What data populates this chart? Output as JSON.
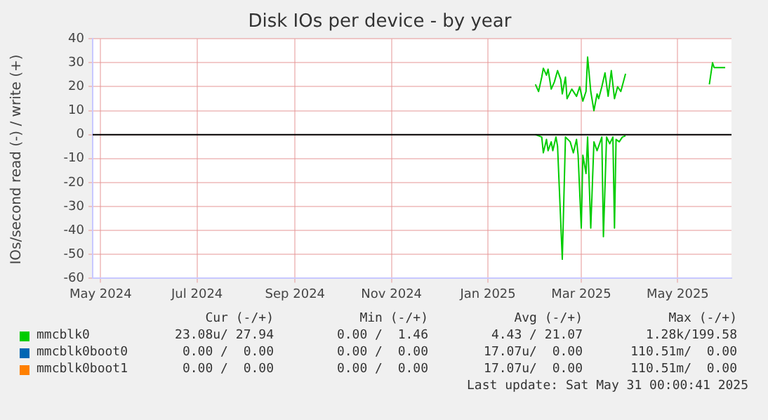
{
  "chart_data": {
    "type": "line",
    "title": "Disk IOs per device - by year",
    "ylabel": "IOs/second read (-) / write (+)",
    "xlim": [
      "2024-04-26",
      "2025-06-04"
    ],
    "xticks": [
      {
        "value": "2024-05-01",
        "label": "May 2024"
      },
      {
        "value": "2024-07-01",
        "label": "Jul 2024"
      },
      {
        "value": "2024-09-01",
        "label": "Sep 2024"
      },
      {
        "value": "2024-11-01",
        "label": "Nov 2024"
      },
      {
        "value": "2025-01-01",
        "label": "Jan 2025"
      },
      {
        "value": "2025-03-01",
        "label": "Mar 2025"
      },
      {
        "value": "2025-05-01",
        "label": "May 2025"
      }
    ],
    "ylim": [
      -60,
      40
    ],
    "yticks": [
      -60,
      -50,
      -40,
      -30,
      -20,
      -10,
      0,
      10,
      20,
      30,
      40
    ],
    "grid": true,
    "legend": "bottom",
    "marker": "none",
    "line_style": "solid",
    "ref_lines": [
      {
        "axis": "y",
        "value": 0,
        "color": "#000000"
      }
    ],
    "series": [
      {
        "name": "mmcblk0",
        "color": "#00cc00",
        "x": [
          "2025-01-31",
          "2025-02-02",
          "2025-02-04",
          "2025-02-05",
          "2025-02-07",
          "2025-02-08",
          "2025-02-10",
          "2025-02-12",
          "2025-02-14",
          "2025-02-16",
          "2025-02-17",
          "2025-02-19",
          "2025-02-20",
          "2025-02-23",
          "2025-02-26",
          "2025-02-28",
          "2025-03-02",
          "2025-03-04",
          "2025-03-05",
          "2025-03-07",
          "2025-03-09",
          "2025-03-11",
          "2025-03-12",
          "2025-03-14",
          "2025-03-16",
          "2025-03-18",
          "2025-03-20",
          "2025-03-22",
          "2025-03-24",
          "2025-03-26",
          "2025-03-29",
          "2025-04-15",
          "2025-05-21",
          "2025-05-23",
          "2025-05-24",
          "2025-05-31"
        ],
        "values": [
          21,
          18,
          24,
          27.7,
          24.8,
          27.3,
          19,
          22,
          26.7,
          23,
          17,
          24,
          15,
          19,
          16,
          20,
          14,
          18,
          32.4,
          18,
          10,
          17,
          15,
          20,
          25.8,
          16,
          26.7,
          15,
          20,
          18,
          25.4,
          null,
          21,
          30,
          28,
          28
        ]
      },
      {
        "color": "#00cc00",
        "x": [
          "2025-01-31",
          "2025-02-04",
          "2025-02-05",
          "2025-02-07",
          "2025-02-08",
          "2025-02-10",
          "2025-02-11",
          "2025-02-13",
          "2025-02-14",
          "2025-02-17",
          "2025-02-19",
          "2025-02-22",
          "2025-02-24",
          "2025-02-26",
          "2025-02-27",
          "2025-03-01",
          "2025-03-02",
          "2025-03-04",
          "2025-03-05",
          "2025-03-07",
          "2025-03-09",
          "2025-03-11",
          "2025-03-14",
          "2025-03-15",
          "2025-03-17",
          "2025-03-19",
          "2025-03-21",
          "2025-03-22",
          "2025-03-23",
          "2025-03-25",
          "2025-03-27",
          "2025-03-29"
        ],
        "values": [
          0,
          -1,
          -7.6,
          -2,
          -6.7,
          -3,
          -6.7,
          -1,
          -4.8,
          -52,
          -1,
          -3,
          -7.6,
          -2,
          -8.6,
          -39,
          -8.6,
          -16.2,
          -1,
          -39,
          -3,
          -6.7,
          -1,
          -42.6,
          -1,
          -3.8,
          -1,
          -39,
          -2,
          -3,
          -1,
          -0.5
        ]
      },
      {
        "name": "mmcblk0boot0",
        "color": "#0066b3"
      },
      {
        "name": "mmcblk0boot1",
        "color": "#ff8000"
      }
    ],
    "annotations": [
      "Cur (-/+)",
      "Min (-/+)",
      "Avg (-/+)",
      "Max (-/+)",
      "23.08u/ 27.94",
      "0.00 /  1.46",
      "4.43 / 21.07",
      "1.28k/199.58",
      "0.00 /  0.00",
      "0.00 /  0.00",
      "17.07u/  0.00",
      "110.51m/  0.00",
      "0.00 /  0.00",
      "0.00 /  0.00",
      "17.07u/  0.00",
      "110.51m/  0.00",
      "Last update: Sat May 31 00:00:41 2025"
    ]
  }
}
